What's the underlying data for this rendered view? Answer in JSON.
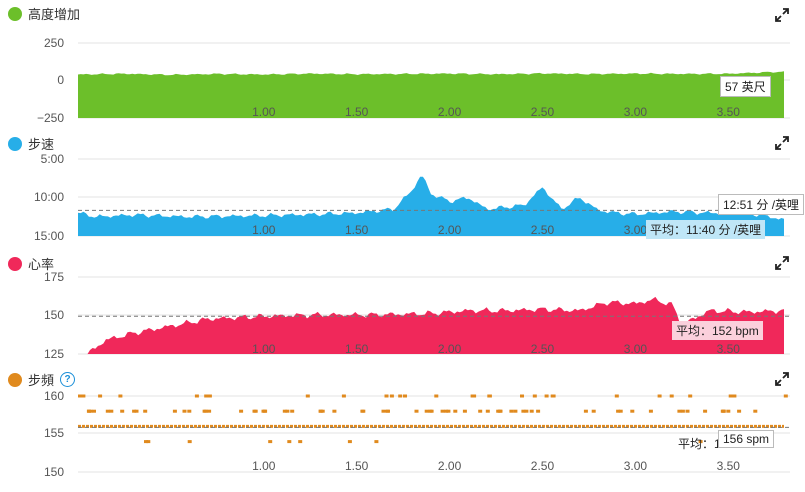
{
  "panels": [
    {
      "id": "elevation",
      "title": "高度增加",
      "color": "#6cbf2a",
      "y_ticks": [
        "250",
        "0",
        "−250"
      ],
      "x_ticks": [
        "1.00",
        "1.50",
        "2.00",
        "2.50",
        "3.00",
        "3.50"
      ],
      "callout": "57 英尺"
    },
    {
      "id": "pace",
      "title": "步速",
      "color": "#27aee8",
      "y_ticks": [
        "5:00",
        "10:00",
        "15:00"
      ],
      "x_ticks": [
        "1.00",
        "1.50",
        "2.00",
        "2.50",
        "3.00",
        "3.50"
      ],
      "callout": "12:51 分 /英哩",
      "average": "平均：11:40 分 /英哩"
    },
    {
      "id": "heart_rate",
      "title": "心率",
      "color": "#f0285a",
      "y_ticks": [
        "175",
        "150",
        "125"
      ],
      "x_ticks": [
        "1.00",
        "1.50",
        "2.00",
        "2.50",
        "3.00",
        "3.50"
      ],
      "average": "平均：152 bpm"
    },
    {
      "id": "cadence",
      "title": "步頻",
      "color": "#e08a1e",
      "help_icon": "question-icon",
      "y_ticks": [
        "160",
        "155",
        "150"
      ],
      "x_ticks": [
        "1.00",
        "1.50",
        "2.00",
        "2.50",
        "3.00",
        "3.50"
      ],
      "callout": "156 spm",
      "average": "平均：1"
    }
  ],
  "chart_data": [
    {
      "type": "area",
      "title": "高度增加",
      "unit": "英尺",
      "x": [
        0.0,
        0.25,
        0.5,
        0.75,
        1.0,
        1.25,
        1.5,
        1.75,
        2.0,
        2.25,
        2.5,
        2.75,
        3.0,
        3.25,
        3.5,
        3.75
      ],
      "values": [
        40,
        45,
        38,
        44,
        40,
        46,
        42,
        44,
        46,
        42,
        47,
        43,
        46,
        44,
        45,
        57
      ],
      "ylim": [
        -250,
        250
      ],
      "xlim": [
        0.0,
        3.8
      ]
    },
    {
      "type": "area",
      "title": "步速",
      "unit": "分 /英哩",
      "x": [
        0.0,
        0.1,
        0.3,
        0.6,
        1.0,
        1.3,
        1.5,
        1.7,
        1.8,
        1.85,
        1.9,
        2.0,
        2.1,
        2.2,
        2.4,
        2.5,
        2.6,
        2.7,
        2.8,
        2.9,
        3.0,
        3.2,
        3.4,
        3.6,
        3.8
      ],
      "values": [
        "12:00",
        "12:30",
        "12:15",
        "12:30",
        "12:20",
        "12:10",
        "12:00",
        "11:30",
        "9:00",
        "7:00",
        "9:30",
        "10:30",
        "10:00",
        "11:30",
        "11:00",
        "8:40",
        "11:30",
        "10:00",
        "11:40",
        "12:00",
        "12:10",
        "11:50",
        "12:00",
        "12:00",
        "12:51"
      ],
      "average": "11:40",
      "ylim": [
        "15:00",
        "5:00"
      ],
      "xlim": [
        0.0,
        3.8
      ]
    },
    {
      "type": "area",
      "title": "心率",
      "unit": "bpm",
      "x": [
        0.05,
        0.15,
        0.3,
        0.5,
        0.7,
        1.0,
        1.3,
        1.6,
        1.9,
        2.1,
        2.3,
        2.5,
        2.7,
        2.85,
        3.0,
        3.1,
        3.2,
        3.25,
        3.4,
        3.6,
        3.8
      ],
      "values": [
        125,
        135,
        140,
        145,
        150,
        152,
        153,
        153,
        154,
        156,
        156,
        157,
        156,
        162,
        161,
        164,
        160,
        146,
        156,
        155,
        156
      ],
      "average": 152,
      "ylim": [
        125,
        180
      ],
      "xlim": [
        0.0,
        3.8
      ]
    },
    {
      "type": "scatter",
      "title": "步頻",
      "unit": "spm",
      "levels": [
        160,
        158,
        156,
        154
      ],
      "dominant_value": 156,
      "ylim": [
        150,
        160
      ],
      "xlim": [
        0.0,
        3.8
      ]
    }
  ]
}
